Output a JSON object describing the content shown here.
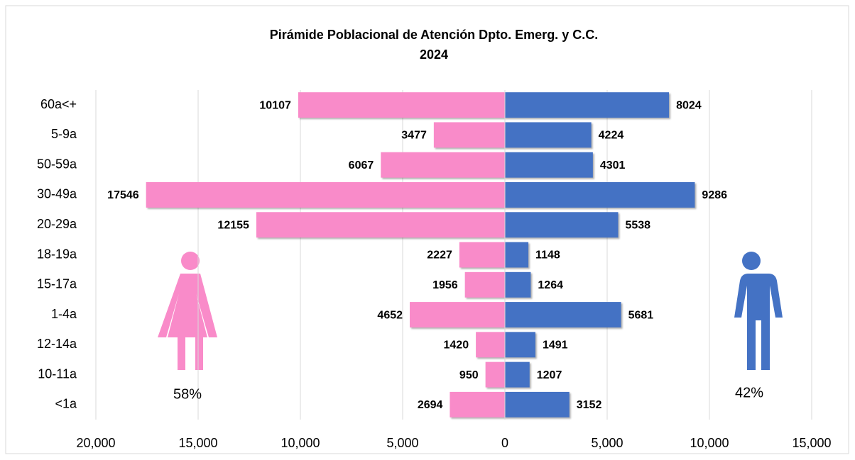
{
  "chart_data": {
    "type": "pyramid",
    "title": "Pirámide Poblacional de Atención Dpto. Emerg. y C.C.",
    "subtitle": "2024",
    "categories": [
      "60a<+",
      "5-9a",
      "50-59a",
      "30-49a",
      "20-29a",
      "18-19a",
      "15-17a",
      "1-4a",
      "12-14a",
      "10-11a",
      "<1a"
    ],
    "series": [
      {
        "color": "#f98bc9",
        "side": "left",
        "share_label": "58%",
        "values": [
          10107,
          3477,
          6067,
          17546,
          12155,
          2227,
          1956,
          4652,
          1420,
          950,
          2694
        ]
      },
      {
        "color": "#4472c4",
        "side": "right",
        "share_label": "42%",
        "values": [
          8024,
          4224,
          4301,
          9286,
          5538,
          1148,
          1264,
          5681,
          1491,
          1207,
          3152
        ]
      }
    ],
    "xlim": [
      -20000,
      15000
    ],
    "xticks": [
      {
        "value": -20000,
        "label": "20,000"
      },
      {
        "value": -15000,
        "label": "15,000"
      },
      {
        "value": -10000,
        "label": "10,000"
      },
      {
        "value": -5000,
        "label": "5,000"
      },
      0,
      {
        "value": 5000,
        "label": "5,000"
      },
      {
        "value": 10000,
        "label": "10,000"
      },
      {
        "value": 15000,
        "label": "15,000"
      }
    ],
    "grid": true
  }
}
